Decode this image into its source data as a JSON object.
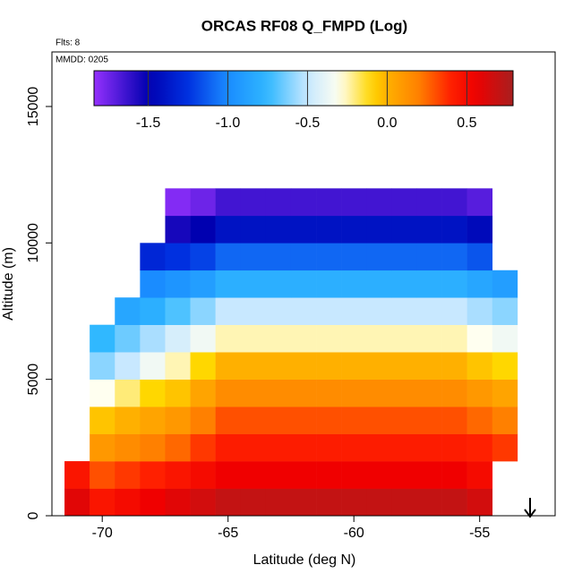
{
  "chart_data": {
    "type": "heatmap",
    "title": "ORCAS RF08 Q_FMPD (Log)",
    "annotations": [
      "Flts: 8",
      "MMDD: 0205"
    ],
    "x_label": "Latitude (deg N)",
    "y_label": "Altitude (m)",
    "x_edges": [
      -71.5,
      -70.5,
      -69.5,
      -68.5,
      -67.5,
      -66.5,
      -65.5,
      -64.5,
      -63.5,
      -62.5,
      -61.5,
      -60.5,
      -59.5,
      -58.5,
      -57.5,
      -56.5,
      -55.5,
      -54.5,
      -53.5
    ],
    "y_edges": [
      0,
      1000,
      2000,
      3000,
      4000,
      5000,
      6000,
      7000,
      8000,
      9000,
      10000,
      11000,
      12000
    ],
    "values": [
      [
        0.6,
        0.45,
        0.5,
        0.55,
        0.6,
        0.65,
        0.7,
        0.7,
        0.7,
        0.7,
        0.7,
        0.7,
        0.7,
        0.7,
        0.7,
        0.7,
        0.65,
        null
      ],
      [
        0.45,
        0.3,
        0.35,
        0.4,
        0.45,
        0.5,
        0.55,
        0.55,
        0.55,
        0.55,
        0.55,
        0.55,
        0.55,
        0.55,
        0.55,
        0.55,
        0.5,
        null
      ],
      [
        null,
        0.1,
        0.15,
        0.2,
        0.25,
        0.35,
        0.42,
        0.42,
        0.42,
        0.42,
        0.42,
        0.42,
        0.42,
        0.42,
        0.42,
        0.42,
        0.4,
        0.35
      ],
      [
        null,
        -0.05,
        0,
        0.05,
        0.1,
        0.2,
        0.3,
        0.3,
        0.3,
        0.3,
        0.3,
        0.3,
        0.3,
        0.3,
        0.3,
        0.3,
        0.25,
        0.2
      ],
      [
        null,
        -0.3,
        -0.2,
        -0.1,
        -0.05,
        0.05,
        0.15,
        0.15,
        0.15,
        0.15,
        0.15,
        0.15,
        0.15,
        0.15,
        0.15,
        0.15,
        0.1,
        0.05
      ],
      [
        null,
        -0.6,
        -0.5,
        -0.35,
        -0.25,
        -0.1,
        0,
        0,
        0,
        0,
        0,
        0,
        0,
        0,
        0,
        0,
        -0.05,
        -0.1
      ],
      [
        null,
        -0.75,
        -0.65,
        -0.55,
        -0.45,
        -0.35,
        -0.25,
        -0.25,
        -0.25,
        -0.25,
        -0.25,
        -0.25,
        -0.25,
        -0.25,
        -0.25,
        -0.25,
        -0.3,
        -0.35
      ],
      [
        null,
        null,
        -0.85,
        -0.8,
        -0.7,
        -0.6,
        -0.5,
        -0.5,
        -0.5,
        -0.5,
        -0.5,
        -0.5,
        -0.5,
        -0.5,
        -0.5,
        -0.5,
        -0.55,
        -0.6
      ],
      [
        null,
        null,
        null,
        -1.0,
        -0.95,
        -0.9,
        -0.8,
        -0.8,
        -0.8,
        -0.8,
        -0.8,
        -0.8,
        -0.8,
        -0.8,
        -0.8,
        -0.8,
        -0.85,
        -0.9
      ],
      [
        null,
        null,
        null,
        -1.3,
        -1.25,
        -1.2,
        -1.1,
        -1.1,
        -1.1,
        -1.1,
        -1.1,
        -1.1,
        -1.1,
        -1.1,
        -1.1,
        -1.1,
        -1.15,
        null
      ],
      [
        null,
        null,
        null,
        null,
        -1.55,
        -1.5,
        -1.4,
        -1.4,
        -1.4,
        -1.4,
        -1.4,
        -1.4,
        -1.4,
        -1.4,
        -1.4,
        -1.4,
        -1.45,
        null
      ],
      [
        null,
        null,
        null,
        null,
        -1.8,
        -1.75,
        -1.65,
        -1.65,
        -1.65,
        -1.65,
        -1.65,
        -1.65,
        -1.65,
        -1.65,
        -1.65,
        -1.65,
        -1.7,
        null
      ]
    ],
    "xlim": [
      -72,
      -52
    ],
    "xticks": [
      -70,
      -65,
      -60,
      -55
    ],
    "ylim": [
      0,
      17000
    ],
    "yticks": [
      0,
      5000,
      10000,
      15000
    ],
    "zlim": [
      -1.84,
      0.79
    ],
    "zticks": [
      -1.5,
      {
        "value": -1,
        "label": "-1.0"
      },
      -0.5,
      {
        "value": 0,
        "label": "0.0"
      },
      0.5
    ],
    "colorscale": [
      [
        -1.85,
        "#9932ff"
      ],
      [
        -1.5,
        "#0000b0"
      ],
      [
        -1.25,
        "#0030e0"
      ],
      [
        -1.0,
        "#1a8cff"
      ],
      [
        -0.75,
        "#30b8ff"
      ],
      [
        -0.5,
        "#c8e8ff"
      ],
      [
        -0.3,
        "#fffff0"
      ],
      [
        -0.1,
        "#ffd700"
      ],
      [
        0,
        "#ffb000"
      ],
      [
        0.2,
        "#ff8000"
      ],
      [
        0.4,
        "#ff2000"
      ],
      [
        0.55,
        "#f00000"
      ],
      [
        0.8,
        "#a52020"
      ]
    ]
  }
}
